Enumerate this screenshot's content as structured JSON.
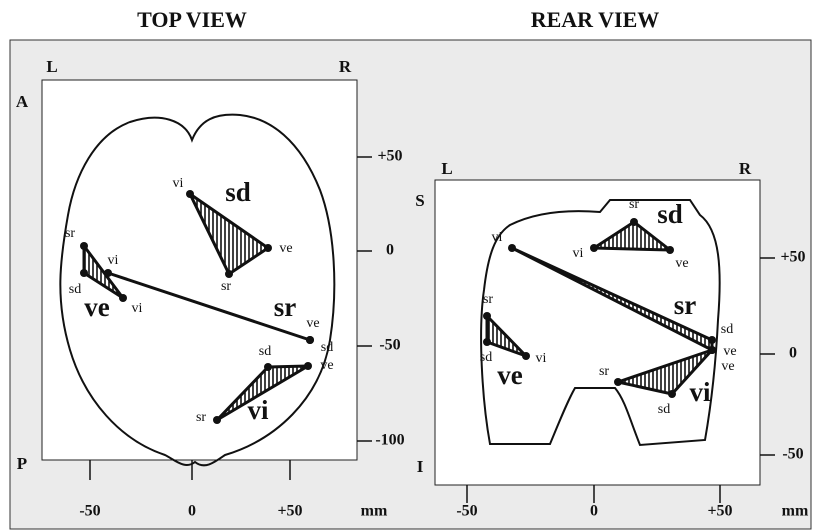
{
  "top_view": {
    "title": "TOP VIEW",
    "corners": [
      "L",
      "R",
      "A",
      "P"
    ],
    "right_axis": [
      "+50",
      "0",
      "-50",
      "-100"
    ],
    "bottom_axis": [
      "-50",
      "0",
      "+50"
    ],
    "unit": "mm",
    "groups": [
      {
        "name": "sd",
        "points": [
          "vi",
          "ve",
          "sr"
        ]
      },
      {
        "name": "ve",
        "points": [
          "sr",
          "vi",
          "sd",
          "vi"
        ]
      },
      {
        "name": "sr",
        "points": [
          "ve",
          "sd"
        ]
      },
      {
        "name": "vi",
        "points": [
          "sd",
          "ve",
          "sr"
        ]
      }
    ]
  },
  "rear_view": {
    "title": "REAR VIEW",
    "corners": [
      "L",
      "R",
      "S",
      "I"
    ],
    "right_axis": [
      "+50",
      "0",
      "-50"
    ],
    "bottom_axis": [
      "-50",
      "0",
      "+50"
    ],
    "unit": "mm",
    "groups": [
      {
        "name": "sd",
        "points": [
          "sr",
          "vi",
          "ve"
        ]
      },
      {
        "name": "sr",
        "points": [
          "vi",
          "sd",
          "ve"
        ]
      },
      {
        "name": "ve",
        "points": [
          "sr",
          "sd",
          "vi"
        ]
      },
      {
        "name": "vi",
        "points": [
          "sr",
          "sd",
          "ve"
        ]
      }
    ]
  }
}
